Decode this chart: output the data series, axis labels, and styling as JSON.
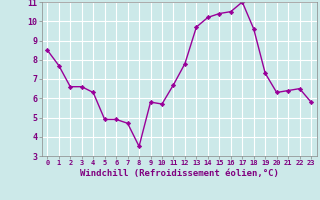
{
  "x": [
    0,
    1,
    2,
    3,
    4,
    5,
    6,
    7,
    8,
    9,
    10,
    11,
    12,
    13,
    14,
    15,
    16,
    17,
    18,
    19,
    20,
    21,
    22,
    23
  ],
  "y": [
    8.5,
    7.7,
    6.6,
    6.6,
    6.3,
    4.9,
    4.9,
    4.7,
    3.5,
    5.8,
    5.7,
    6.7,
    7.8,
    9.7,
    10.2,
    10.4,
    10.5,
    11.0,
    9.6,
    7.3,
    6.3,
    6.4,
    6.5,
    5.8
  ],
  "line_color": "#990099",
  "marker": "D",
  "marker_size": 2.2,
  "xlabel": "Windchill (Refroidissement éolien,°C)",
  "xlabel_fontsize": 6.5,
  "xlim": [
    -0.5,
    23.5
  ],
  "ylim": [
    3,
    11
  ],
  "xticks": [
    0,
    1,
    2,
    3,
    4,
    5,
    6,
    7,
    8,
    9,
    10,
    11,
    12,
    13,
    14,
    15,
    16,
    17,
    18,
    19,
    20,
    21,
    22,
    23
  ],
  "yticks": [
    3,
    4,
    5,
    6,
    7,
    8,
    9,
    10,
    11
  ],
  "xtick_fontsize": 5.0,
  "ytick_fontsize": 6.0,
  "bg_color": "#cce9e9",
  "grid_color": "#ffffff",
  "line_width": 1.0,
  "label_color": "#800080"
}
